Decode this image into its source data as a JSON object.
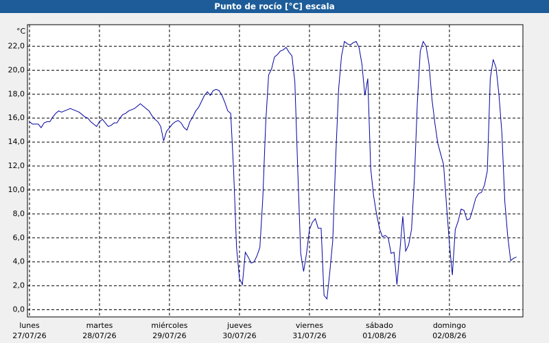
{
  "chart_data": {
    "type": "line",
    "title": "Punto de rocío [°C] escala",
    "y_unit": "°C",
    "x": [
      0,
      1,
      2,
      3,
      4,
      5,
      6,
      7,
      8,
      9,
      10,
      11,
      12,
      13,
      14,
      15,
      16,
      17,
      18,
      19,
      20,
      21,
      22,
      23,
      24,
      25,
      26,
      27,
      28,
      29,
      30,
      31,
      32,
      33,
      34,
      35,
      36,
      37,
      38,
      39,
      40,
      41,
      42,
      43,
      44,
      45,
      46,
      47,
      48,
      49,
      50,
      51,
      52,
      53,
      54,
      55,
      56,
      57,
      58,
      59,
      60,
      61,
      62,
      63,
      64,
      65,
      66,
      67,
      68,
      69,
      70,
      71,
      72,
      73,
      74,
      75,
      76,
      77,
      78,
      79,
      80,
      81,
      82,
      83,
      84,
      85,
      86,
      87,
      88,
      89,
      90,
      91,
      92,
      93,
      94,
      95,
      96,
      97,
      98,
      99,
      100,
      101,
      102,
      103,
      104,
      105,
      106,
      107,
      108,
      109,
      110,
      111,
      112,
      113,
      114,
      115,
      116,
      117,
      118,
      119,
      120,
      121,
      122,
      123,
      124,
      125,
      126,
      127,
      128,
      129,
      130,
      131,
      132,
      133,
      134,
      135,
      136,
      137,
      138,
      139,
      140,
      141,
      142,
      143,
      144,
      145,
      146,
      147,
      148,
      149,
      150,
      151,
      152,
      153,
      154,
      155,
      156,
      157,
      158,
      159,
      160,
      161,
      162,
      163,
      164,
      165,
      166,
      167
    ],
    "series": [
      {
        "color": "#0000a0",
        "values": [
          15.7,
          15.5,
          15.5,
          15.5,
          15.2,
          15.6,
          15.7,
          15.7,
          16.1,
          16.4,
          16.6,
          16.5,
          16.6,
          16.7,
          16.8,
          16.7,
          16.6,
          16.5,
          16.3,
          16.1,
          16.0,
          15.7,
          15.5,
          15.3,
          15.7,
          15.9,
          15.6,
          15.3,
          15.4,
          15.6,
          15.6,
          16.0,
          16.3,
          16.4,
          16.6,
          16.7,
          16.8,
          17.0,
          17.2,
          17.0,
          16.8,
          16.6,
          16.2,
          15.9,
          15.7,
          15.3,
          14.1,
          14.9,
          15.2,
          15.5,
          15.7,
          15.8,
          15.6,
          15.2,
          15.0,
          15.7,
          16.1,
          16.6,
          16.9,
          17.4,
          17.9,
          18.2,
          17.9,
          18.3,
          18.4,
          18.3,
          17.9,
          17.3,
          16.6,
          16.4,
          11.6,
          5.2,
          2.6,
          2.1,
          4.8,
          4.4,
          3.9,
          4.0,
          4.5,
          5.2,
          9.3,
          15.6,
          19.6,
          20.1,
          21.1,
          21.3,
          21.6,
          21.7,
          21.9,
          21.5,
          21.2,
          19.0,
          11.6,
          4.7,
          3.2,
          4.7,
          6.7,
          7.3,
          7.6,
          6.8,
          6.8,
          1.2,
          0.9,
          3.2,
          5.8,
          12.7,
          18.4,
          21.2,
          22.4,
          22.2,
          22.1,
          22.3,
          22.4,
          21.9,
          20.5,
          17.9,
          19.3,
          11.8,
          9.5,
          8.0,
          6.8,
          6.1,
          6.2,
          6.0,
          4.7,
          4.8,
          2.1,
          4.9,
          7.8,
          4.9,
          5.4,
          6.7,
          11.0,
          17.3,
          21.6,
          22.4,
          22.0,
          20.5,
          17.6,
          15.6,
          13.9,
          13.0,
          12.1,
          8.7,
          5.5,
          2.9,
          6.7,
          7.4,
          8.4,
          8.3,
          7.5,
          7.6,
          8.4,
          9.3,
          9.7,
          9.8,
          10.4,
          11.6,
          19.3,
          20.9,
          20.2,
          17.9,
          14.7,
          9.0,
          6.1,
          4.1,
          4.3,
          4.4
        ]
      }
    ],
    "xlim": [
      -0.7,
      169.2
    ],
    "ylim": [
      -0.6,
      23.8
    ],
    "xticks": [
      {
        "value": 0,
        "label": "lunes",
        "sublabel": "27/07/26"
      },
      {
        "value": 24,
        "label": "martes",
        "sublabel": "28/07/26"
      },
      {
        "value": 48,
        "label": "miércoles",
        "sublabel": "29/07/26"
      },
      {
        "value": 72,
        "label": "jueves",
        "sublabel": "30/07/26"
      },
      {
        "value": 96,
        "label": "viernes",
        "sublabel": "31/07/26"
      },
      {
        "value": 120,
        "label": "sábado",
        "sublabel": "01/08/26"
      },
      {
        "value": 144,
        "label": "domingo",
        "sublabel": "02/08/26"
      }
    ],
    "yticks": [
      {
        "value": 0,
        "label": "0,0"
      },
      {
        "value": 2,
        "label": "2,0"
      },
      {
        "value": 4,
        "label": "4,0"
      },
      {
        "value": 6,
        "label": "6,0"
      },
      {
        "value": 8,
        "label": "8,0"
      },
      {
        "value": 10,
        "label": "10,0"
      },
      {
        "value": 12,
        "label": "12,0"
      },
      {
        "value": 14,
        "label": "14,0"
      },
      {
        "value": 16,
        "label": "16,0"
      },
      {
        "value": 18,
        "label": "18,0"
      },
      {
        "value": 20,
        "label": "20,0"
      },
      {
        "value": 22,
        "label": "22,0"
      }
    ],
    "grid": true
  }
}
